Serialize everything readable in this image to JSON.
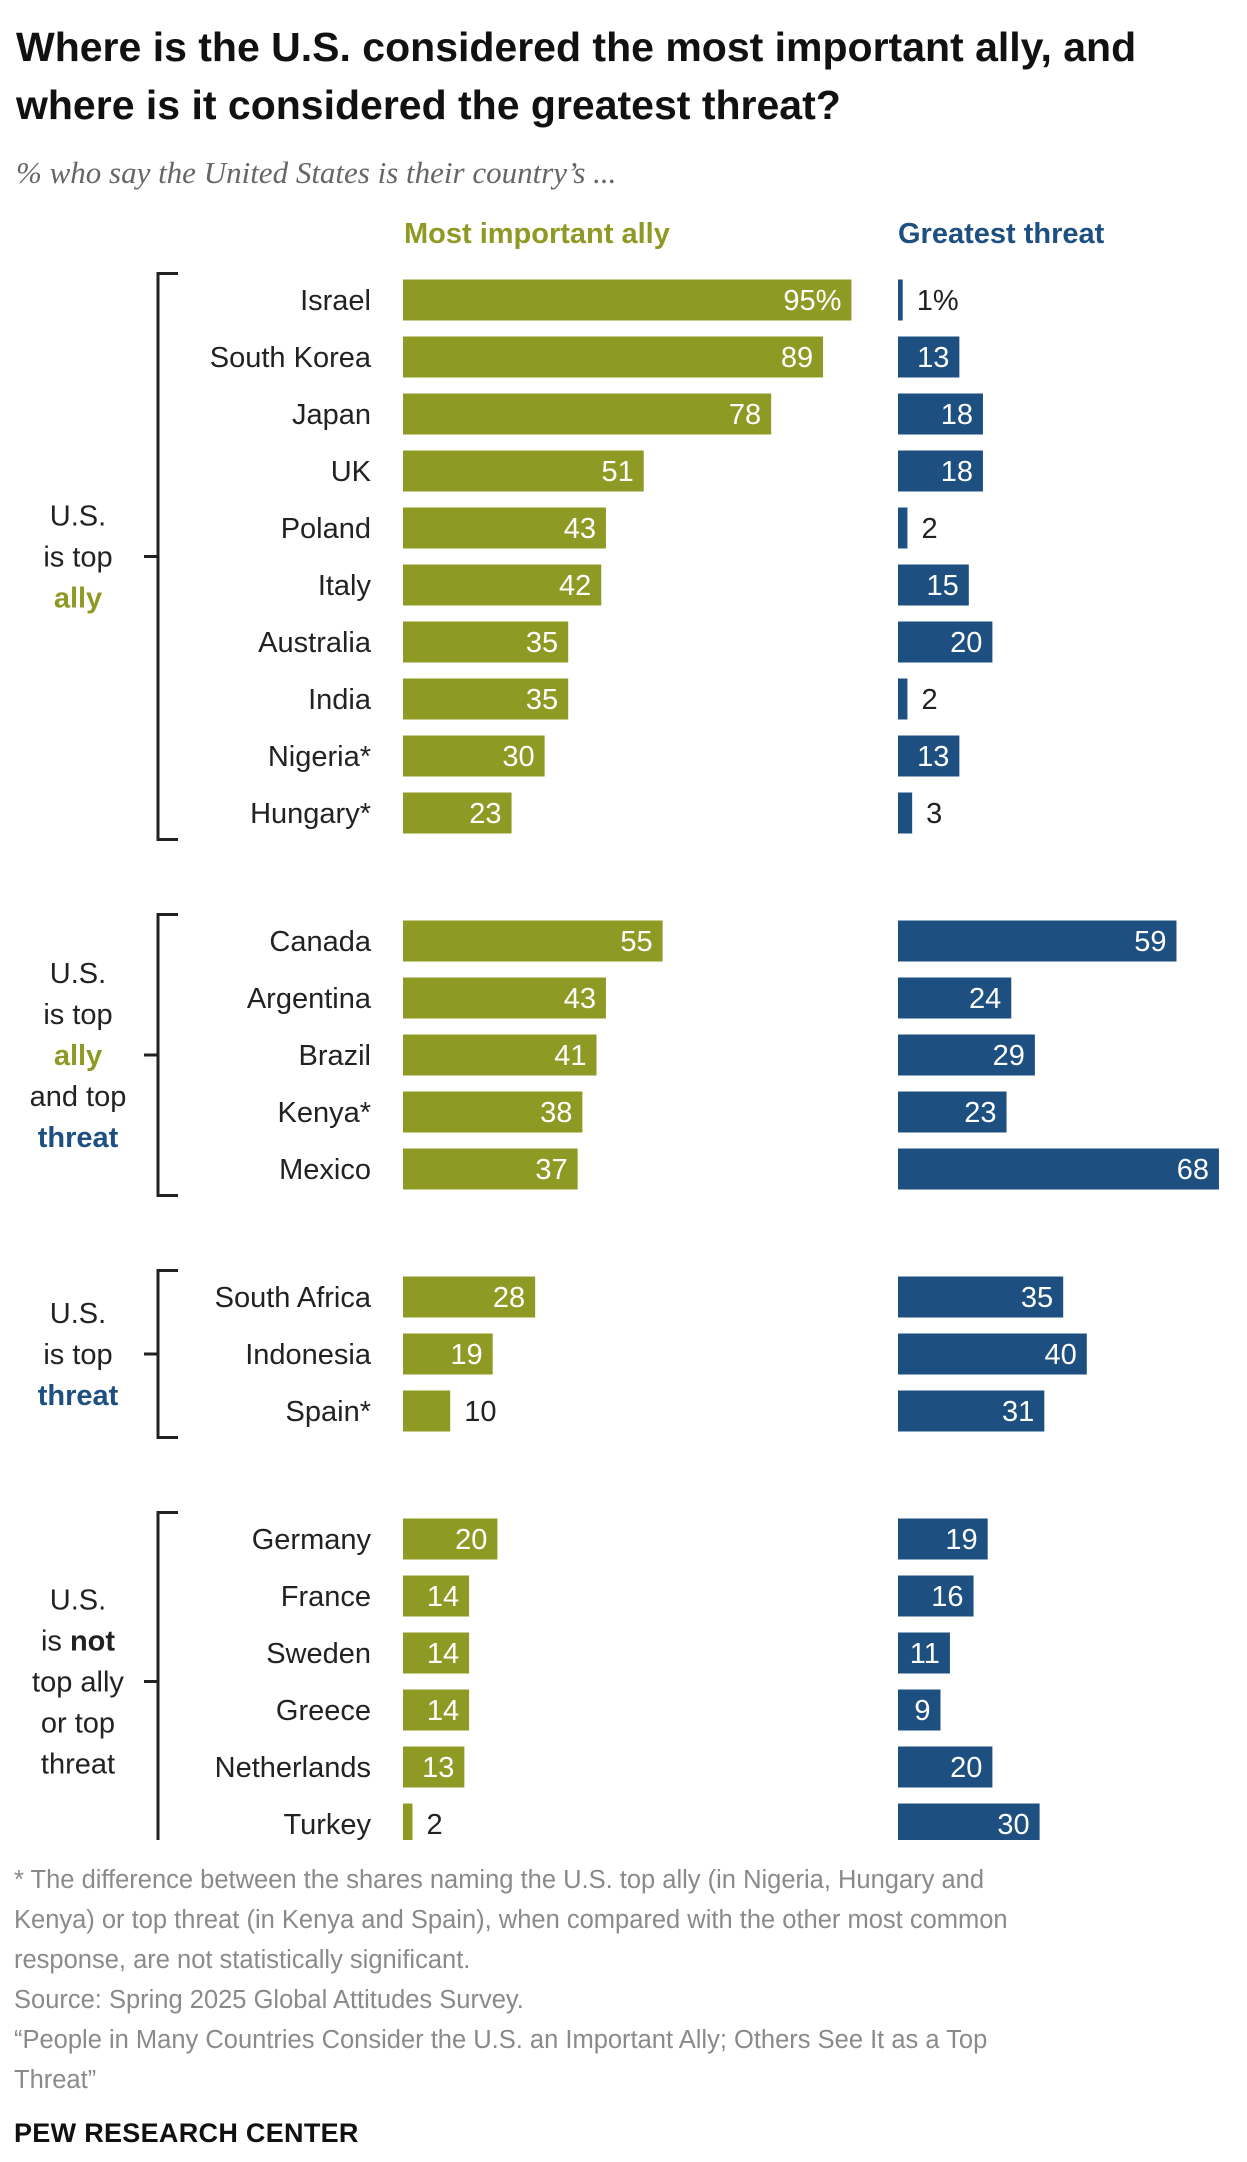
{
  "title": "Where is the U.S. considered the most important ally, and where is it considered the greatest threat?",
  "subtitle": "% who say the United States is their country’s ...",
  "colors": {
    "ally": "#8f9a25",
    "threat": "#1d4f80",
    "text": "#222222",
    "note": "#8a8a8a"
  },
  "chart_data": {
    "type": "bar",
    "series": [
      {
        "name": "Most important ally",
        "color": "#8f9a25",
        "values": [
          95,
          89,
          78,
          51,
          43,
          42,
          35,
          35,
          30,
          23,
          55,
          43,
          41,
          38,
          37,
          28,
          19,
          10,
          20,
          14,
          14,
          14,
          13,
          2
        ]
      },
      {
        "name": "Greatest threat",
        "color": "#1d4f80",
        "values": [
          1,
          13,
          18,
          18,
          2,
          15,
          20,
          2,
          13,
          3,
          59,
          24,
          29,
          23,
          68,
          35,
          40,
          31,
          19,
          16,
          11,
          9,
          20,
          30
        ]
      }
    ],
    "categories": [
      "Israel",
      "South Korea",
      "Japan",
      "UK",
      "Poland",
      "Italy",
      "Australia",
      "India",
      "Nigeria*",
      "Hungary*",
      "Canada",
      "Argentina",
      "Brazil",
      "Kenya*",
      "Mexico",
      "South Africa",
      "Indonesia",
      "Spain*",
      "Germany",
      "France",
      "Sweden",
      "Greece",
      "Netherlands",
      "Turkey"
    ],
    "value_labels": {
      "ally": [
        "95%",
        "89",
        "78",
        "51",
        "43",
        "42",
        "35",
        "35",
        "30",
        "23",
        "55",
        "43",
        "41",
        "38",
        "37",
        "28",
        "19",
        "10",
        "20",
        "14",
        "14",
        "14",
        "13",
        "2"
      ],
      "threat": [
        "1%",
        "13",
        "18",
        "18",
        "2",
        "15",
        "20",
        "2",
        "13",
        "3",
        "59",
        "24",
        "29",
        "23",
        "68",
        "35",
        "40",
        "31",
        "19",
        "16",
        "11",
        "9",
        "20",
        "30"
      ]
    },
    "groups": [
      {
        "lines": [
          [
            {
              "t": "U.S."
            }
          ],
          [
            {
              "t": "is top"
            }
          ],
          [
            {
              "t": "ally",
              "style": "ally"
            }
          ]
        ],
        "start": 0,
        "end": 9
      },
      {
        "lines": [
          [
            {
              "t": "U.S."
            }
          ],
          [
            {
              "t": "is top"
            }
          ],
          [
            {
              "t": "ally",
              "style": "ally"
            }
          ],
          [
            {
              "t": "and top"
            }
          ],
          [
            {
              "t": "threat",
              "style": "threat"
            }
          ]
        ],
        "start": 10,
        "end": 14
      },
      {
        "lines": [
          [
            {
              "t": "U.S."
            }
          ],
          [
            {
              "t": "is top"
            }
          ],
          [
            {
              "t": "threat",
              "style": "threat"
            }
          ]
        ],
        "start": 15,
        "end": 17
      },
      {
        "lines": [
          [
            {
              "t": "U.S."
            }
          ],
          [
            {
              "t": "is "
            },
            {
              "t": "not",
              "style": "bold"
            }
          ],
          [
            {
              "t": "top ally"
            }
          ],
          [
            {
              "t": "or top"
            }
          ],
          [
            {
              "t": "threat"
            }
          ]
        ],
        "start": 18,
        "end": 23
      }
    ],
    "xlim": [
      0,
      100
    ],
    "title": "Where is the U.S. considered the most important ally, and where is it considered the greatest threat?"
  },
  "column_headers": {
    "ally": "Most important ally",
    "threat": "Greatest threat"
  },
  "footnotes": [
    "* The difference between the shares naming the U.S. top ally (in Nigeria, Hungary and",
    "Kenya) or top threat (in Kenya and Spain), when compared with the other most common",
    "response, are not statistically significant.",
    "Source: Spring 2025 Global Attitudes Survey.",
    "“People in Many Countries Consider the U.S. an Important Ally; Others See It as a Top",
    "Threat”"
  ],
  "source_org": "PEW RESEARCH CENTER"
}
